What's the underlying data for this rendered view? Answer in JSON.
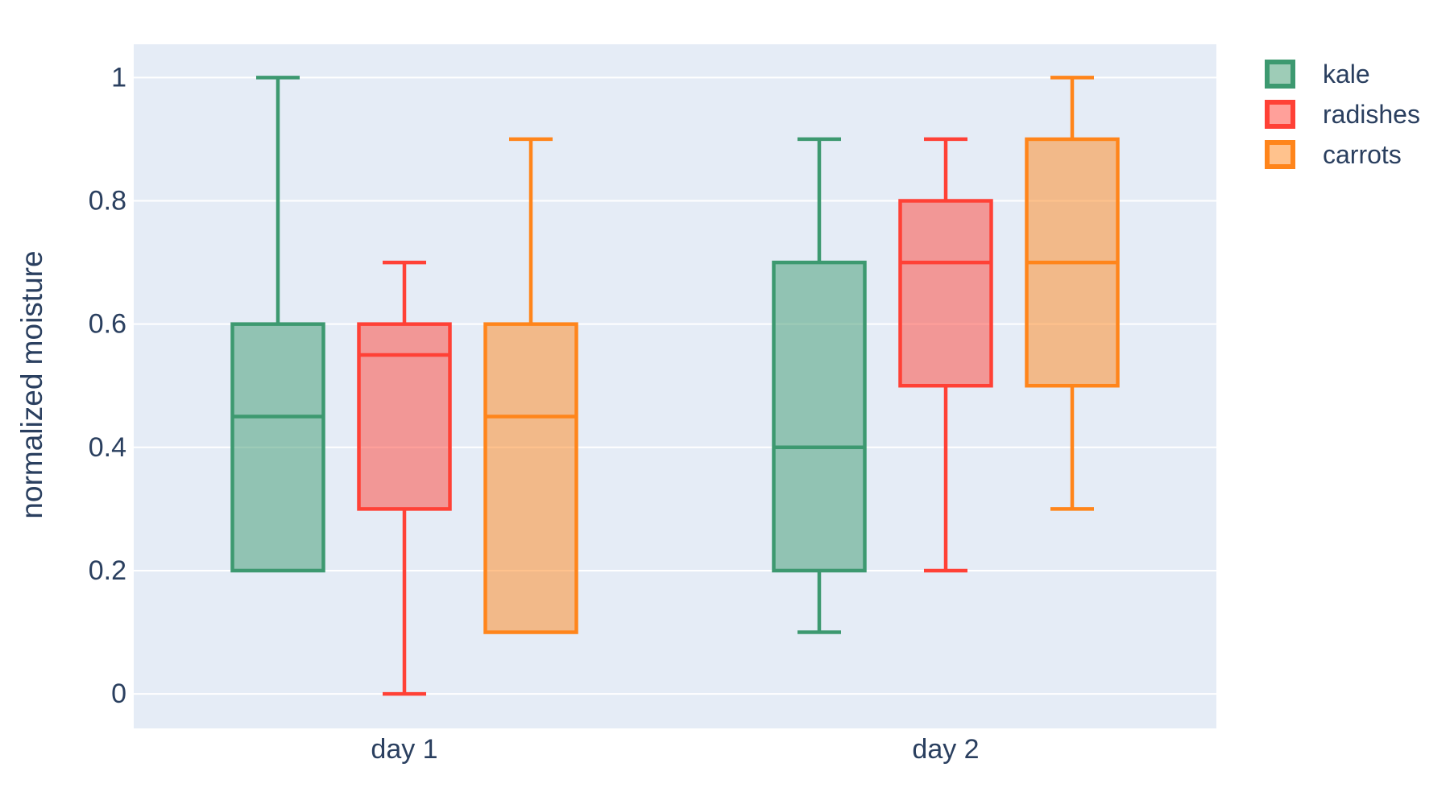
{
  "chart_data": {
    "type": "box",
    "boxmode": "group",
    "title": "",
    "xlabel": "",
    "ylabel": "normalized moisture",
    "categories": [
      "day 1",
      "day 2"
    ],
    "y_tick_values": [
      0,
      0.2,
      0.4,
      0.6,
      0.8,
      1
    ],
    "y_tick_labels": [
      "0",
      "0.2",
      "0.4",
      "0.6",
      "0.8",
      "1"
    ],
    "ylim": [
      -0.056,
      1.054
    ],
    "grid": true,
    "legend_position": "top-right-outside",
    "fill_opacity": 0.5,
    "series": [
      {
        "name": "kale",
        "color": "#3D9970",
        "boxes": [
          {
            "category": "day 1",
            "min": 0.2,
            "q1": 0.2,
            "median": 0.45,
            "q3": 0.6,
            "max": 1.0
          },
          {
            "category": "day 2",
            "min": 0.1,
            "q1": 0.2,
            "median": 0.4,
            "q3": 0.7,
            "max": 0.9
          }
        ]
      },
      {
        "name": "radishes",
        "color": "#FF4136",
        "boxes": [
          {
            "category": "day 1",
            "min": 0.0,
            "q1": 0.3,
            "median": 0.55,
            "q3": 0.6,
            "max": 0.7
          },
          {
            "category": "day 2",
            "min": 0.2,
            "q1": 0.5,
            "median": 0.7,
            "q3": 0.8,
            "max": 0.9
          }
        ]
      },
      {
        "name": "carrots",
        "color": "#FF851B",
        "boxes": [
          {
            "category": "day 1",
            "min": 0.1,
            "q1": 0.1,
            "median": 0.45,
            "q3": 0.6,
            "max": 0.9
          },
          {
            "category": "day 2",
            "min": 0.3,
            "q1": 0.5,
            "median": 0.7,
            "q3": 0.9,
            "max": 1.0
          }
        ]
      }
    ]
  },
  "colors": {
    "page_bg": "#FFFFFF",
    "plot_bg": "#E5ECF6",
    "grid": "#FFFFFF",
    "text": "#2A3F5F"
  }
}
